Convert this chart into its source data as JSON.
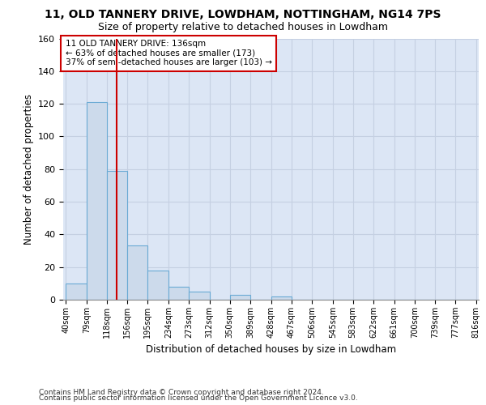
{
  "title_line1": "11, OLD TANNERY DRIVE, LOWDHAM, NOTTINGHAM, NG14 7PS",
  "title_line2": "Size of property relative to detached houses in Lowdham",
  "xlabel": "Distribution of detached houses by size in Lowdham",
  "ylabel": "Number of detached properties",
  "bin_edges": [
    40,
    79,
    118,
    156,
    195,
    234,
    273,
    312,
    350,
    389,
    428,
    467,
    506,
    545,
    583,
    622,
    661,
    700,
    739,
    777,
    816
  ],
  "bar_heights": [
    10,
    121,
    79,
    33,
    18,
    8,
    5,
    0,
    3,
    0,
    2,
    0,
    0,
    0,
    0,
    0,
    0,
    0,
    0,
    0
  ],
  "bar_fill": "#ccdaeb",
  "bar_edge": "#6aaad4",
  "vline_x": 136,
  "vline_color": "#cc0000",
  "ann_line1": "11 OLD TANNERY DRIVE: 136sqm",
  "ann_line2": "← 63% of detached houses are smaller (173)",
  "ann_line3": "37% of semi-detached houses are larger (103) →",
  "ann_fc": "#ffffff",
  "ann_ec": "#cc0000",
  "bg_color": "#dce6f5",
  "grid_color": "#c5d0e2",
  "ylim_max": 160,
  "yticks": [
    0,
    20,
    40,
    60,
    80,
    100,
    120,
    140,
    160
  ],
  "footer1": "Contains HM Land Registry data © Crown copyright and database right 2024.",
  "footer2": "Contains public sector information licensed under the Open Government Licence v3.0."
}
